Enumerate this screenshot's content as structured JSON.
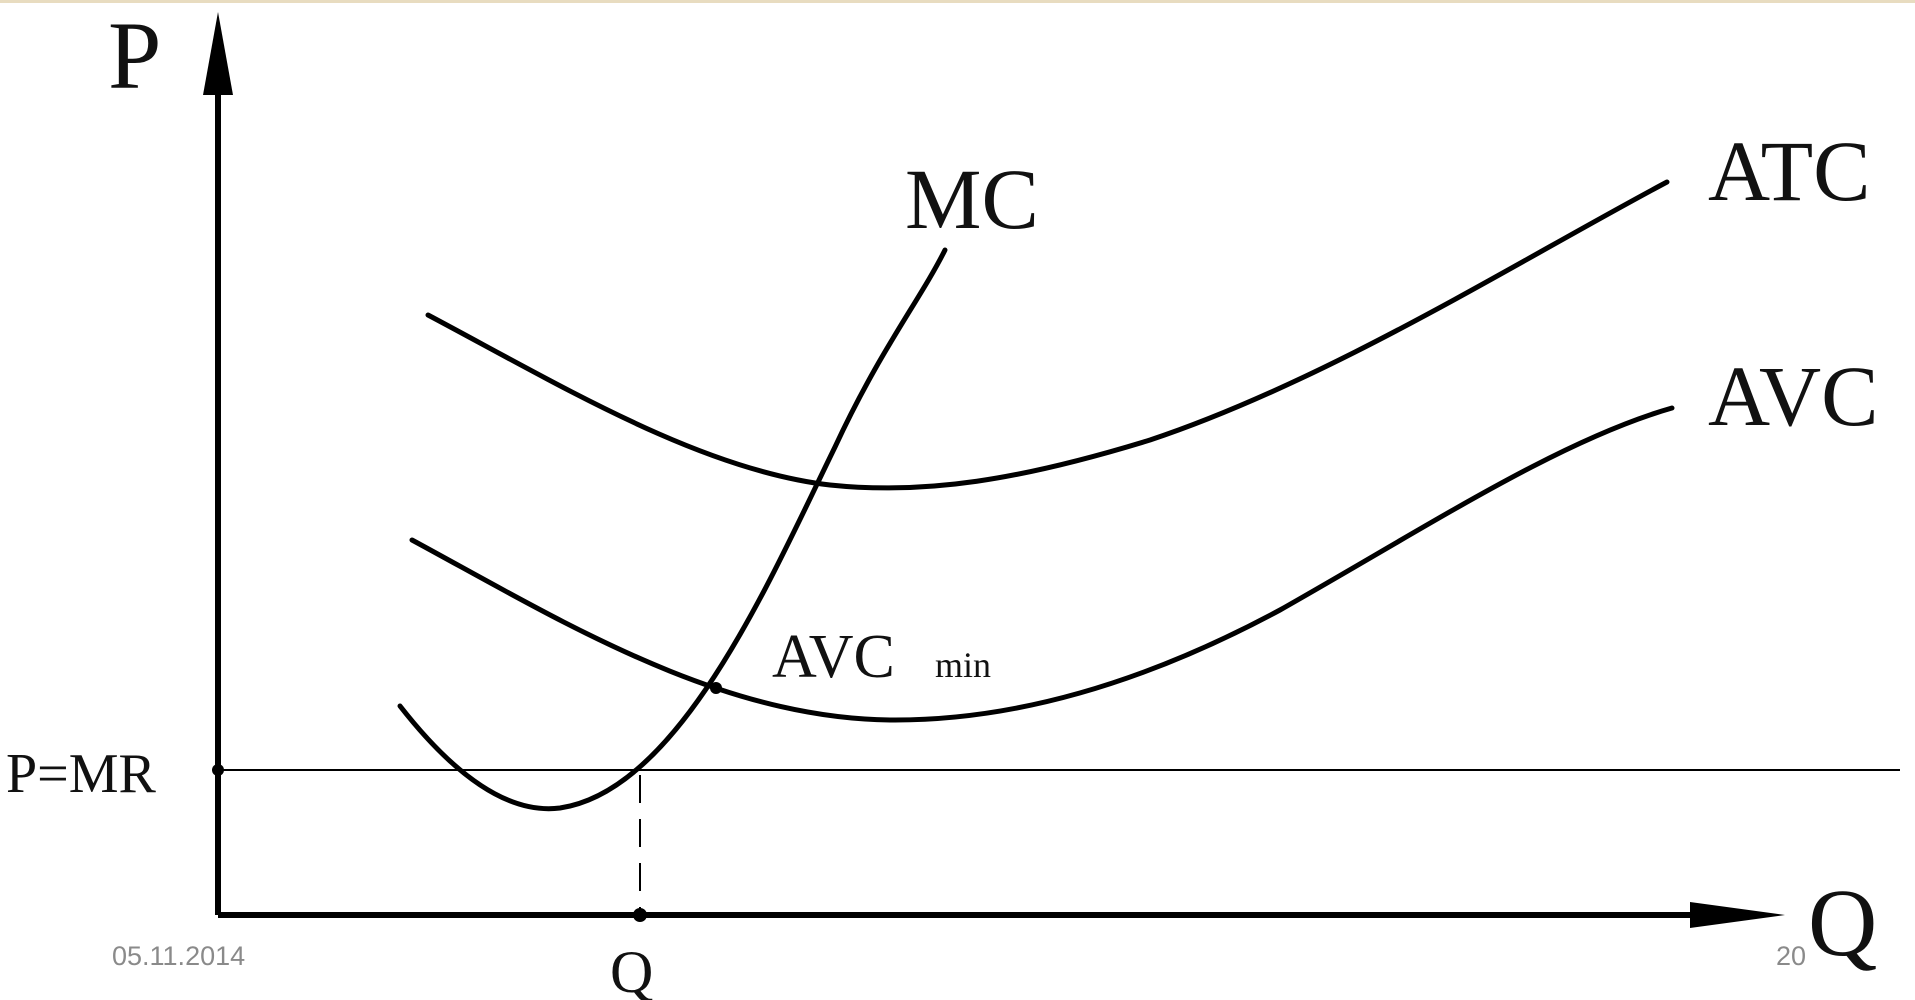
{
  "header": {
    "cut_title": "........"
  },
  "axes": {
    "y_label": "P",
    "x_label": "Q"
  },
  "curves": {
    "mc": "MC",
    "atc": "ATC",
    "avc": "AVC"
  },
  "annotations": {
    "avc_min_main": "AVC",
    "avc_min_sub": "min",
    "price_line": "P=MR",
    "q_tick": "Q"
  },
  "footer": {
    "date": "05.11.2014",
    "slide_number": "20"
  }
}
